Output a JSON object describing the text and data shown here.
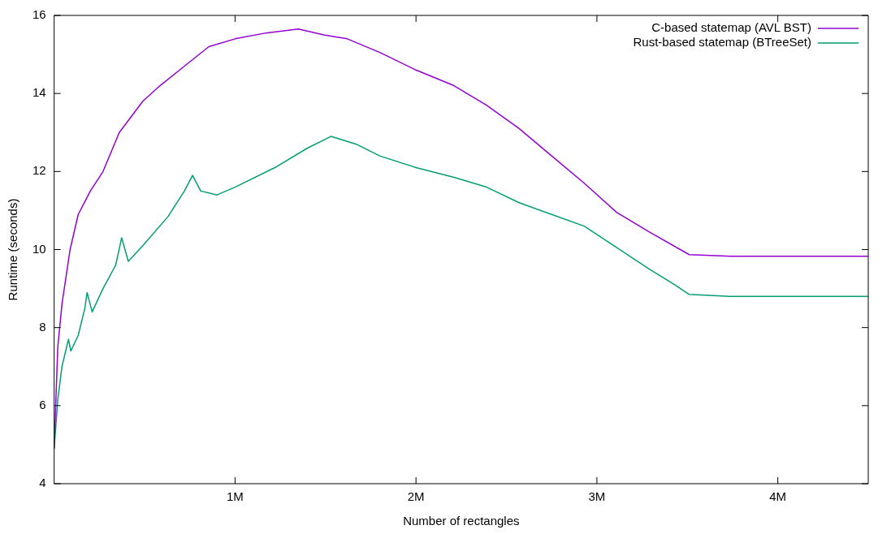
{
  "chart_data": {
    "type": "line",
    "xlabel": "Number of rectangles",
    "ylabel": "Runtime (seconds)",
    "xlim": [
      0,
      4500000
    ],
    "xticks": [
      {
        "value": 1000000,
        "label": "1M"
      },
      {
        "value": 2000000,
        "label": "2M"
      },
      {
        "value": 3000000,
        "label": "3M"
      },
      {
        "value": 4000000,
        "label": "4M"
      }
    ],
    "ylim": [
      4,
      16
    ],
    "yticks": [
      4,
      6,
      8,
      10,
      12,
      14,
      16
    ],
    "grid": false,
    "legend": "top right",
    "marker": "none",
    "line_style": "solid",
    "series": [
      {
        "name": "C-based statemap (AVL BST)",
        "color": "#9400d3",
        "x": [
          0,
          20000,
          43000,
          88000,
          133000,
          200000,
          270000,
          360000,
          490000,
          585000,
          720000,
          855000,
          1000000,
          1170000,
          1350000,
          1490000,
          1620000,
          1800000,
          2000000,
          2210000,
          2390000,
          2570000,
          2750000,
          2930000,
          3110000,
          3290000,
          3510000,
          3740000,
          4200000,
          4500000
        ],
        "values": [
          4.9,
          7.5,
          8.6,
          10.0,
          10.9,
          11.5,
          12.0,
          13.0,
          13.8,
          14.2,
          14.7,
          15.2,
          15.4,
          15.55,
          15.65,
          15.5,
          15.4,
          15.05,
          14.6,
          14.2,
          13.7,
          13.1,
          12.4,
          11.7,
          10.95,
          10.45,
          9.87,
          9.83,
          9.83,
          9.83
        ]
      },
      {
        "name": "Rust-based statemap (BTreeSet)",
        "color": "#009e73",
        "x": [
          0,
          20000,
          43000,
          79000,
          92000,
          133000,
          170000,
          182000,
          210000,
          270000,
          340000,
          373000,
          410000,
          490000,
          630000,
          720000,
          765000,
          810000,
          900000,
          1000000,
          1220000,
          1400000,
          1530000,
          1670000,
          1800000,
          2000000,
          2210000,
          2390000,
          2570000,
          2750000,
          2930000,
          3110000,
          3290000,
          3430000,
          3510000,
          3740000,
          4200000,
          4500000
        ],
        "values": [
          4.9,
          6.15,
          7.0,
          7.7,
          7.4,
          7.8,
          8.5,
          8.9,
          8.4,
          9.0,
          9.6,
          10.3,
          9.7,
          10.1,
          10.85,
          11.5,
          11.9,
          11.5,
          11.4,
          11.6,
          12.1,
          12.6,
          12.9,
          12.7,
          12.4,
          12.1,
          11.85,
          11.6,
          11.2,
          10.9,
          10.6,
          10.05,
          9.5,
          9.1,
          8.85,
          8.8,
          8.8,
          8.8
        ]
      }
    ]
  }
}
